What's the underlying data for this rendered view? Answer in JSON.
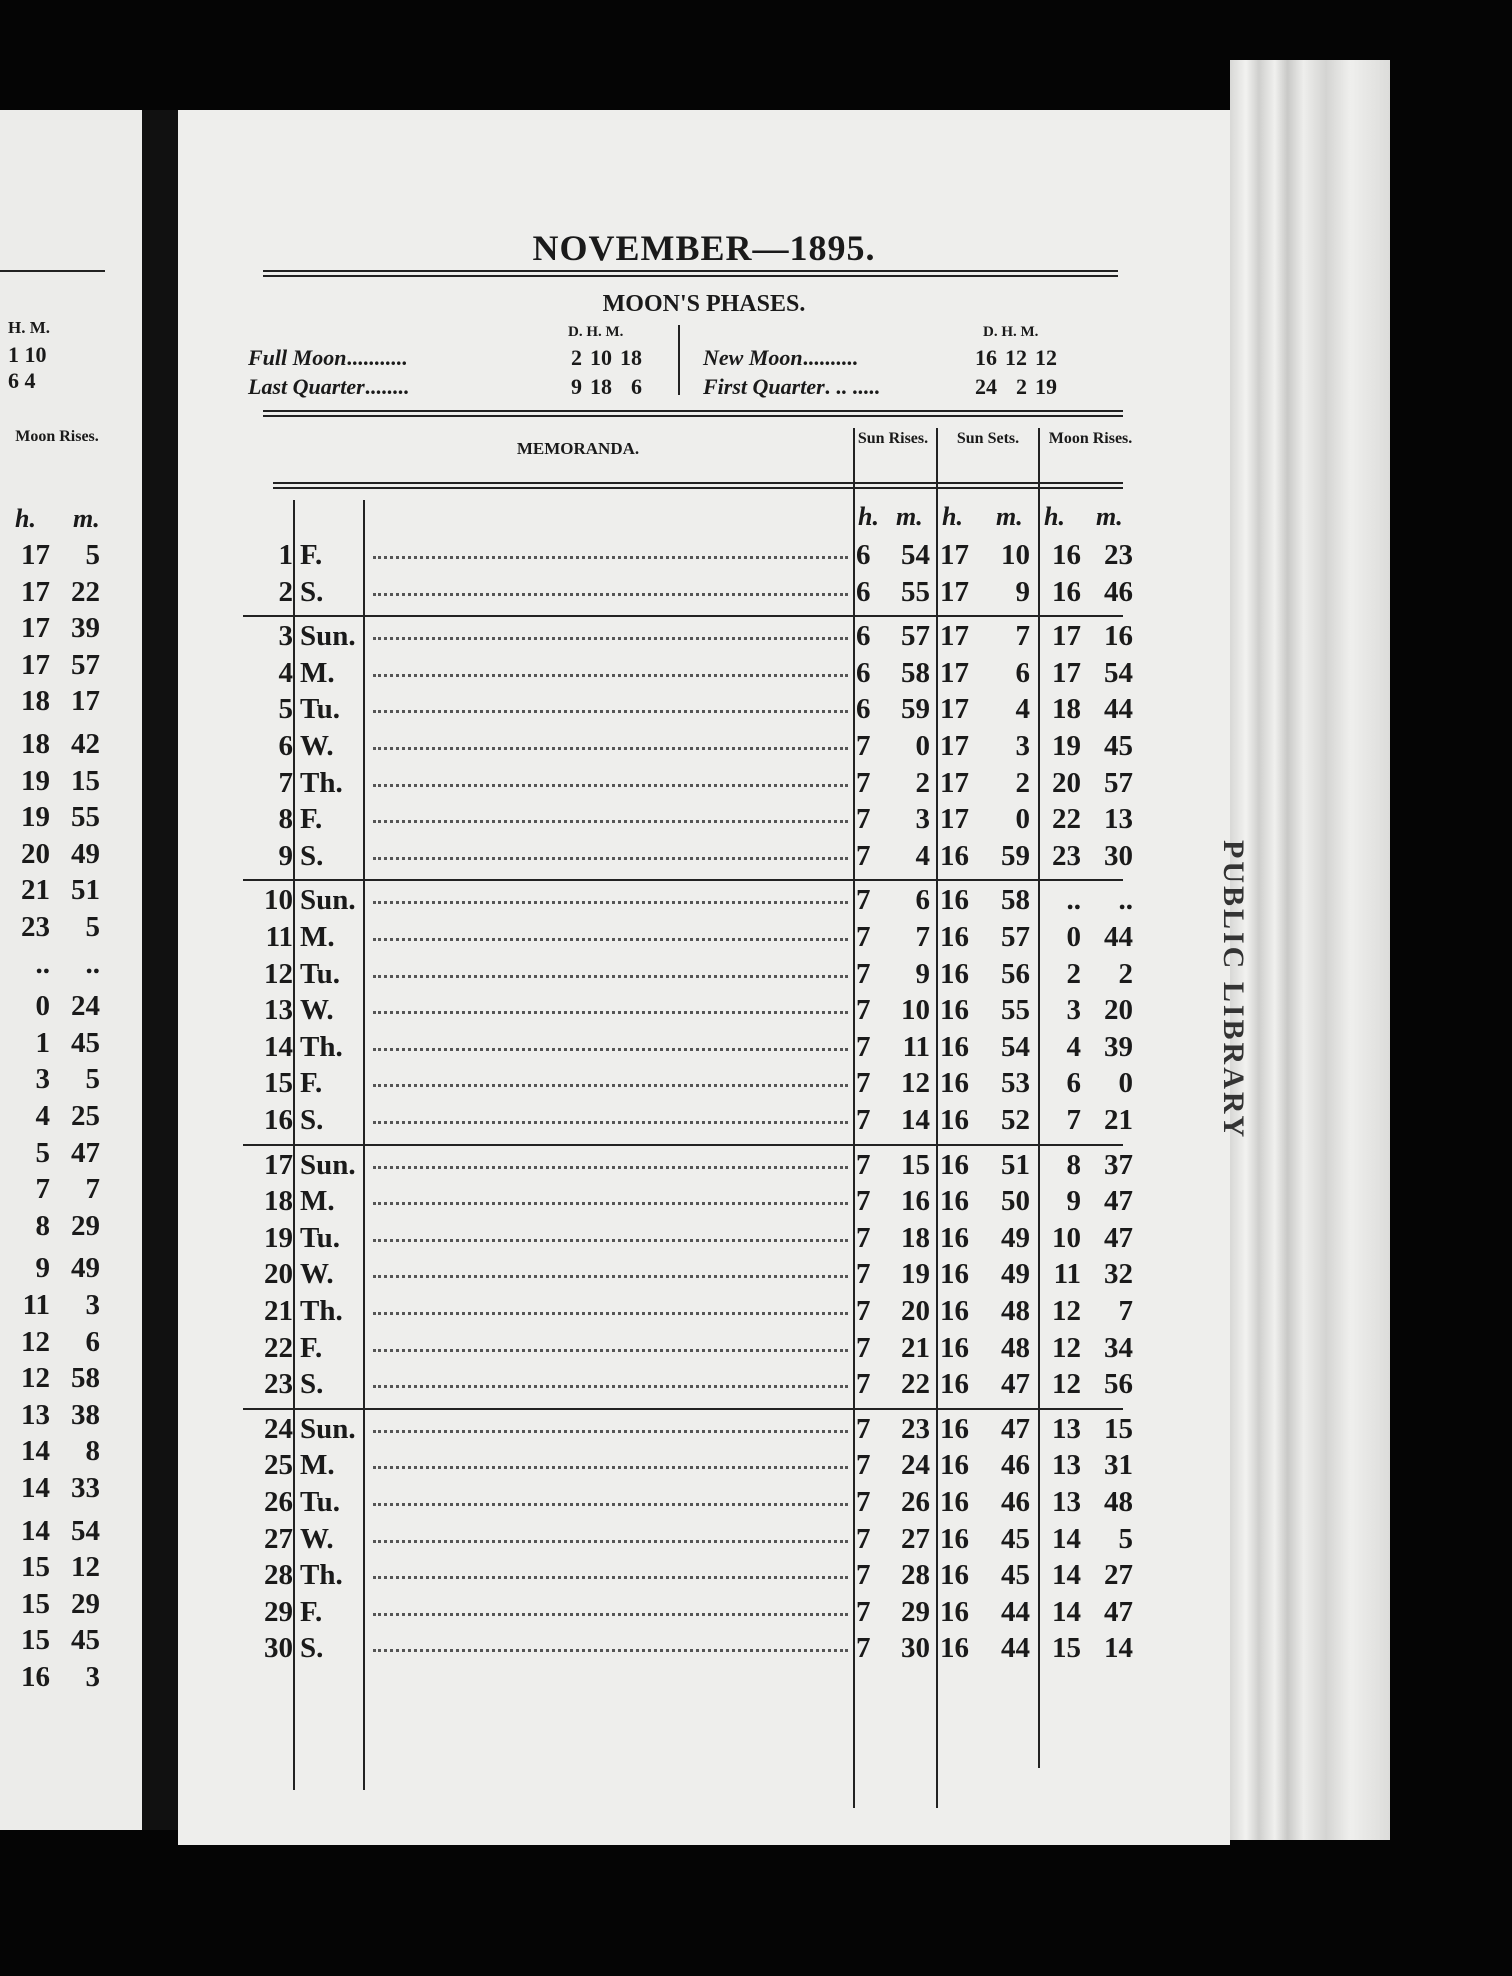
{
  "title": "NOVEMBER—1895.",
  "moon_phases": {
    "heading": "MOON'S PHASES.",
    "col_header": "D. H. M.",
    "left": [
      {
        "name": "Full Moon",
        "dots": "...........",
        "d": "2",
        "h": "10",
        "m": "18"
      },
      {
        "name": "Last Quarter",
        "dots": "........",
        "d": "9",
        "h": "18",
        "m": "6"
      }
    ],
    "right": [
      {
        "name": "New Moon",
        "dots": "..........",
        "d": "16",
        "h": "12",
        "m": "12"
      },
      {
        "name": "First Quarter",
        "dots": ". .. .....",
        "d": "24",
        "h": "2",
        "m": "19"
      }
    ]
  },
  "headers": {
    "memoranda": "MEMORANDA.",
    "sun_rises": "Sun Rises.",
    "sun_sets": "Sun Sets.",
    "moon_rises": "Moon Rises.",
    "h": "h.",
    "m": "m."
  },
  "rows": [
    [
      "1",
      "F.",
      "6",
      "54",
      "17",
      "10",
      "16",
      "23"
    ],
    [
      "2",
      "S.",
      "6",
      "55",
      "17",
      "9",
      "16",
      "46"
    ],
    [
      "3",
      "Sun.",
      "6",
      "57",
      "17",
      "7",
      "17",
      "16"
    ],
    [
      "4",
      "M.",
      "6",
      "58",
      "17",
      "6",
      "17",
      "54"
    ],
    [
      "5",
      "Tu.",
      "6",
      "59",
      "17",
      "4",
      "18",
      "44"
    ],
    [
      "6",
      "W.",
      "7",
      "0",
      "17",
      "3",
      "19",
      "45"
    ],
    [
      "7",
      "Th.",
      "7",
      "2",
      "17",
      "2",
      "20",
      "57"
    ],
    [
      "8",
      "F.",
      "7",
      "3",
      "17",
      "0",
      "22",
      "13"
    ],
    [
      "9",
      "S.",
      "7",
      "4",
      "16",
      "59",
      "23",
      "30"
    ],
    [
      "10",
      "Sun.",
      "7",
      "6",
      "16",
      "58",
      "..",
      ".."
    ],
    [
      "11",
      "M.",
      "7",
      "7",
      "16",
      "57",
      "0",
      "44"
    ],
    [
      "12",
      "Tu.",
      "7",
      "9",
      "16",
      "56",
      "2",
      "2"
    ],
    [
      "13",
      "W.",
      "7",
      "10",
      "16",
      "55",
      "3",
      "20"
    ],
    [
      "14",
      "Th.",
      "7",
      "11",
      "16",
      "54",
      "4",
      "39"
    ],
    [
      "15",
      "F.",
      "7",
      "12",
      "16",
      "53",
      "6",
      "0"
    ],
    [
      "16",
      "S.",
      "7",
      "14",
      "16",
      "52",
      "7",
      "21"
    ],
    [
      "17",
      "Sun.",
      "7",
      "15",
      "16",
      "51",
      "8",
      "37"
    ],
    [
      "18",
      "M.",
      "7",
      "16",
      "16",
      "50",
      "9",
      "47"
    ],
    [
      "19",
      "Tu.",
      "7",
      "18",
      "16",
      "49",
      "10",
      "47"
    ],
    [
      "20",
      "W.",
      "7",
      "19",
      "16",
      "49",
      "11",
      "32"
    ],
    [
      "21",
      "Th.",
      "7",
      "20",
      "16",
      "48",
      "12",
      "7"
    ],
    [
      "22",
      "F.",
      "7",
      "21",
      "16",
      "48",
      "12",
      "34"
    ],
    [
      "23",
      "S.",
      "7",
      "22",
      "16",
      "47",
      "12",
      "56"
    ],
    [
      "24",
      "Sun.",
      "7",
      "23",
      "16",
      "47",
      "13",
      "15"
    ],
    [
      "25",
      "M.",
      "7",
      "24",
      "16",
      "46",
      "13",
      "31"
    ],
    [
      "26",
      "Tu.",
      "7",
      "26",
      "16",
      "46",
      "13",
      "48"
    ],
    [
      "27",
      "W.",
      "7",
      "27",
      "16",
      "45",
      "14",
      "5"
    ],
    [
      "28",
      "Th.",
      "7",
      "28",
      "16",
      "45",
      "14",
      "27"
    ],
    [
      "29",
      "F.",
      "7",
      "29",
      "16",
      "44",
      "14",
      "47"
    ],
    [
      "30",
      "S.",
      "7",
      "30",
      "16",
      "44",
      "15",
      "14"
    ]
  ],
  "left_page": {
    "col_header": "H. M.",
    "phase_values": [
      [
        "1",
        "10"
      ],
      [
        "6",
        "4"
      ]
    ],
    "moon_rises": "Moon Rises.",
    "h": "h.",
    "m": "m.",
    "rows": [
      [
        "17",
        "5"
      ],
      [
        "17",
        "22"
      ],
      [
        "17",
        "39"
      ],
      [
        "17",
        "57"
      ],
      [
        "18",
        "17"
      ],
      [
        "18",
        "42"
      ],
      [
        "19",
        "15"
      ],
      [
        "19",
        "55"
      ],
      [
        "20",
        "49"
      ],
      [
        "21",
        "51"
      ],
      [
        "23",
        "5"
      ],
      [
        "..",
        ".."
      ],
      [
        "0",
        "24"
      ],
      [
        "1",
        "45"
      ],
      [
        "3",
        "5"
      ],
      [
        "4",
        "25"
      ],
      [
        "5",
        "47"
      ],
      [
        "7",
        "7"
      ],
      [
        "8",
        "29"
      ],
      [
        "9",
        "49"
      ],
      [
        "11",
        "3"
      ],
      [
        "12",
        "6"
      ],
      [
        "12",
        "58"
      ],
      [
        "13",
        "38"
      ],
      [
        "14",
        "8"
      ],
      [
        "14",
        "33"
      ],
      [
        "14",
        "54"
      ],
      [
        "15",
        "12"
      ],
      [
        "15",
        "29"
      ],
      [
        "15",
        "45"
      ],
      [
        "16",
        "3"
      ]
    ]
  },
  "stamp": "PUBLIC LIBRARY"
}
